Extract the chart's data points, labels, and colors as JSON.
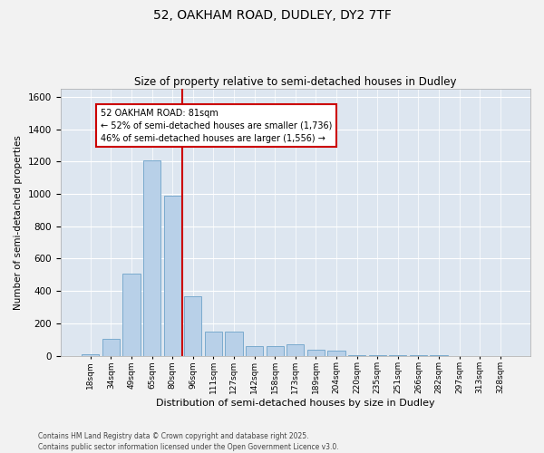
{
  "title_line1": "52, OAKHAM ROAD, DUDLEY, DY2 7TF",
  "title_line2": "Size of property relative to semi-detached houses in Dudley",
  "xlabel": "Distribution of semi-detached houses by size in Dudley",
  "ylabel": "Number of semi-detached properties",
  "bar_color": "#b8d0e8",
  "bar_edge_color": "#7aaace",
  "fig_background": "#f2f2f2",
  "plot_background": "#dde6f0",
  "grid_color": "#ffffff",
  "vline_color": "#cc0000",
  "annotation_title": "52 OAKHAM ROAD: 81sqm",
  "annotation_line1": "← 52% of semi-detached houses are smaller (1,736)",
  "annotation_line2": "46% of semi-detached houses are larger (1,556) →",
  "annotation_box_color": "#cc0000",
  "footer_line1": "Contains HM Land Registry data © Crown copyright and database right 2025.",
  "footer_line2": "Contains public sector information licensed under the Open Government Licence v3.0.",
  "categories": [
    "18sqm",
    "34sqm",
    "49sqm",
    "65sqm",
    "80sqm",
    "96sqm",
    "111sqm",
    "127sqm",
    "142sqm",
    "158sqm",
    "173sqm",
    "189sqm",
    "204sqm",
    "220sqm",
    "235sqm",
    "251sqm",
    "266sqm",
    "282sqm",
    "297sqm",
    "313sqm",
    "328sqm"
  ],
  "values": [
    8,
    105,
    510,
    1210,
    990,
    365,
    150,
    150,
    60,
    60,
    70,
    35,
    30,
    5,
    5,
    3,
    3,
    2,
    0,
    0,
    0
  ],
  "vline_bin_idx": 4,
  "ylim": [
    0,
    1650
  ],
  "yticks": [
    0,
    200,
    400,
    600,
    800,
    1000,
    1200,
    1400,
    1600
  ]
}
